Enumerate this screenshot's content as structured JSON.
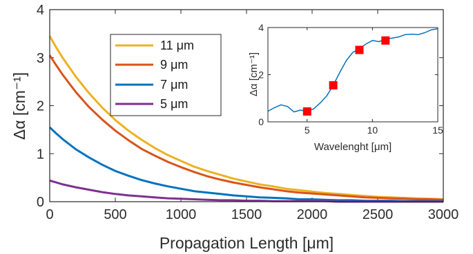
{
  "chart_data": [
    {
      "type": "line",
      "xlabel": "Propagation Length [μm]",
      "ylabel": "Δα [cm⁻¹]",
      "xlim": [
        0,
        3000
      ],
      "ylim": [
        0,
        4
      ],
      "xticks": [
        "0",
        "500",
        "1000",
        "1500",
        "2000",
        "2500",
        "3000"
      ],
      "yticks": [
        "0",
        "1",
        "2",
        "3",
        "4"
      ],
      "legend_position": "top-left",
      "grid": false,
      "x": [
        0,
        50,
        100,
        200,
        300,
        400,
        500,
        600,
        700,
        800,
        900,
        1000,
        1100,
        1200,
        1300,
        1400,
        1500,
        1600,
        1700,
        1800,
        1900,
        2000,
        2100,
        2200,
        2300,
        2400,
        2500,
        2600,
        2700,
        2800,
        2900,
        3000
      ],
      "series": [
        {
          "name": "11 μm",
          "color": "#EDB120",
          "values": [
            3.45,
            3.21,
            2.99,
            2.6,
            2.26,
            1.96,
            1.7,
            1.48,
            1.29,
            1.12,
            0.97,
            0.85,
            0.73,
            0.64,
            0.56,
            0.48,
            0.42,
            0.36,
            0.32,
            0.27,
            0.24,
            0.21,
            0.18,
            0.16,
            0.14,
            0.12,
            0.1,
            0.09,
            0.08,
            0.07,
            0.06,
            0.05
          ]
        },
        {
          "name": "9 μm",
          "color": "#D95319",
          "values": [
            3.05,
            2.84,
            2.64,
            2.28,
            1.97,
            1.71,
            1.48,
            1.28,
            1.1,
            0.96,
            0.83,
            0.72,
            0.62,
            0.53,
            0.46,
            0.4,
            0.35,
            0.3,
            0.26,
            0.22,
            0.19,
            0.17,
            0.15,
            0.13,
            0.11,
            0.09,
            0.08,
            0.07,
            0.06,
            0.05,
            0.05,
            0.04
          ]
        },
        {
          "name": "7 μm",
          "color": "#0072BD",
          "values": [
            1.55,
            1.42,
            1.3,
            1.09,
            0.92,
            0.77,
            0.64,
            0.54,
            0.45,
            0.38,
            0.32,
            0.27,
            0.22,
            0.19,
            0.16,
            0.13,
            0.11,
            0.09,
            0.08,
            0.07,
            0.05,
            0.05,
            0.04,
            0.03,
            0.03,
            0.02,
            0.02,
            0.02,
            0.01,
            0.01,
            0.01,
            0.01
          ]
        },
        {
          "name": "5 μm",
          "color": "#7E2F8E",
          "values": [
            0.44,
            0.4,
            0.36,
            0.3,
            0.25,
            0.2,
            0.16,
            0.13,
            0.11,
            0.09,
            0.07,
            0.06,
            0.05,
            0.04,
            0.03,
            0.03,
            0.02,
            0.02,
            0.01,
            0.01,
            0.01,
            0.01,
            0.01,
            0.0,
            0.0,
            0.0,
            0.0,
            0.0,
            0.0,
            0.0,
            0.0,
            0.0
          ]
        }
      ]
    },
    {
      "type": "line",
      "xlabel": "Wavelenght [μm]",
      "ylabel": "Δα [cm⁻¹]",
      "xlim": [
        2,
        15
      ],
      "ylim": [
        0,
        4
      ],
      "xticks": [
        "5",
        "10",
        "15"
      ],
      "yticks": [
        "0",
        "2",
        "4"
      ],
      "grid": false,
      "series": [
        {
          "color": "#0072BD",
          "x": [
            2,
            2.5,
            3,
            3.5,
            4,
            4.5,
            5,
            5.5,
            6,
            6.5,
            7,
            7.5,
            8,
            8.5,
            9,
            9.5,
            10,
            10.5,
            11,
            11.5,
            12,
            12.5,
            13,
            13.5,
            14,
            14.5,
            15
          ],
          "values": [
            0.45,
            0.6,
            0.72,
            0.65,
            0.42,
            0.5,
            0.44,
            0.55,
            0.8,
            1.1,
            1.55,
            2.1,
            2.6,
            2.95,
            3.1,
            3.3,
            3.45,
            3.4,
            3.5,
            3.55,
            3.6,
            3.7,
            3.72,
            3.7,
            3.78,
            3.9,
            3.95
          ]
        },
        {
          "type": "scatter",
          "marker": "square",
          "color": "#FF0000",
          "x": [
            5,
            7,
            9,
            11
          ],
          "values": [
            0.44,
            1.55,
            3.05,
            3.45
          ]
        }
      ]
    }
  ]
}
